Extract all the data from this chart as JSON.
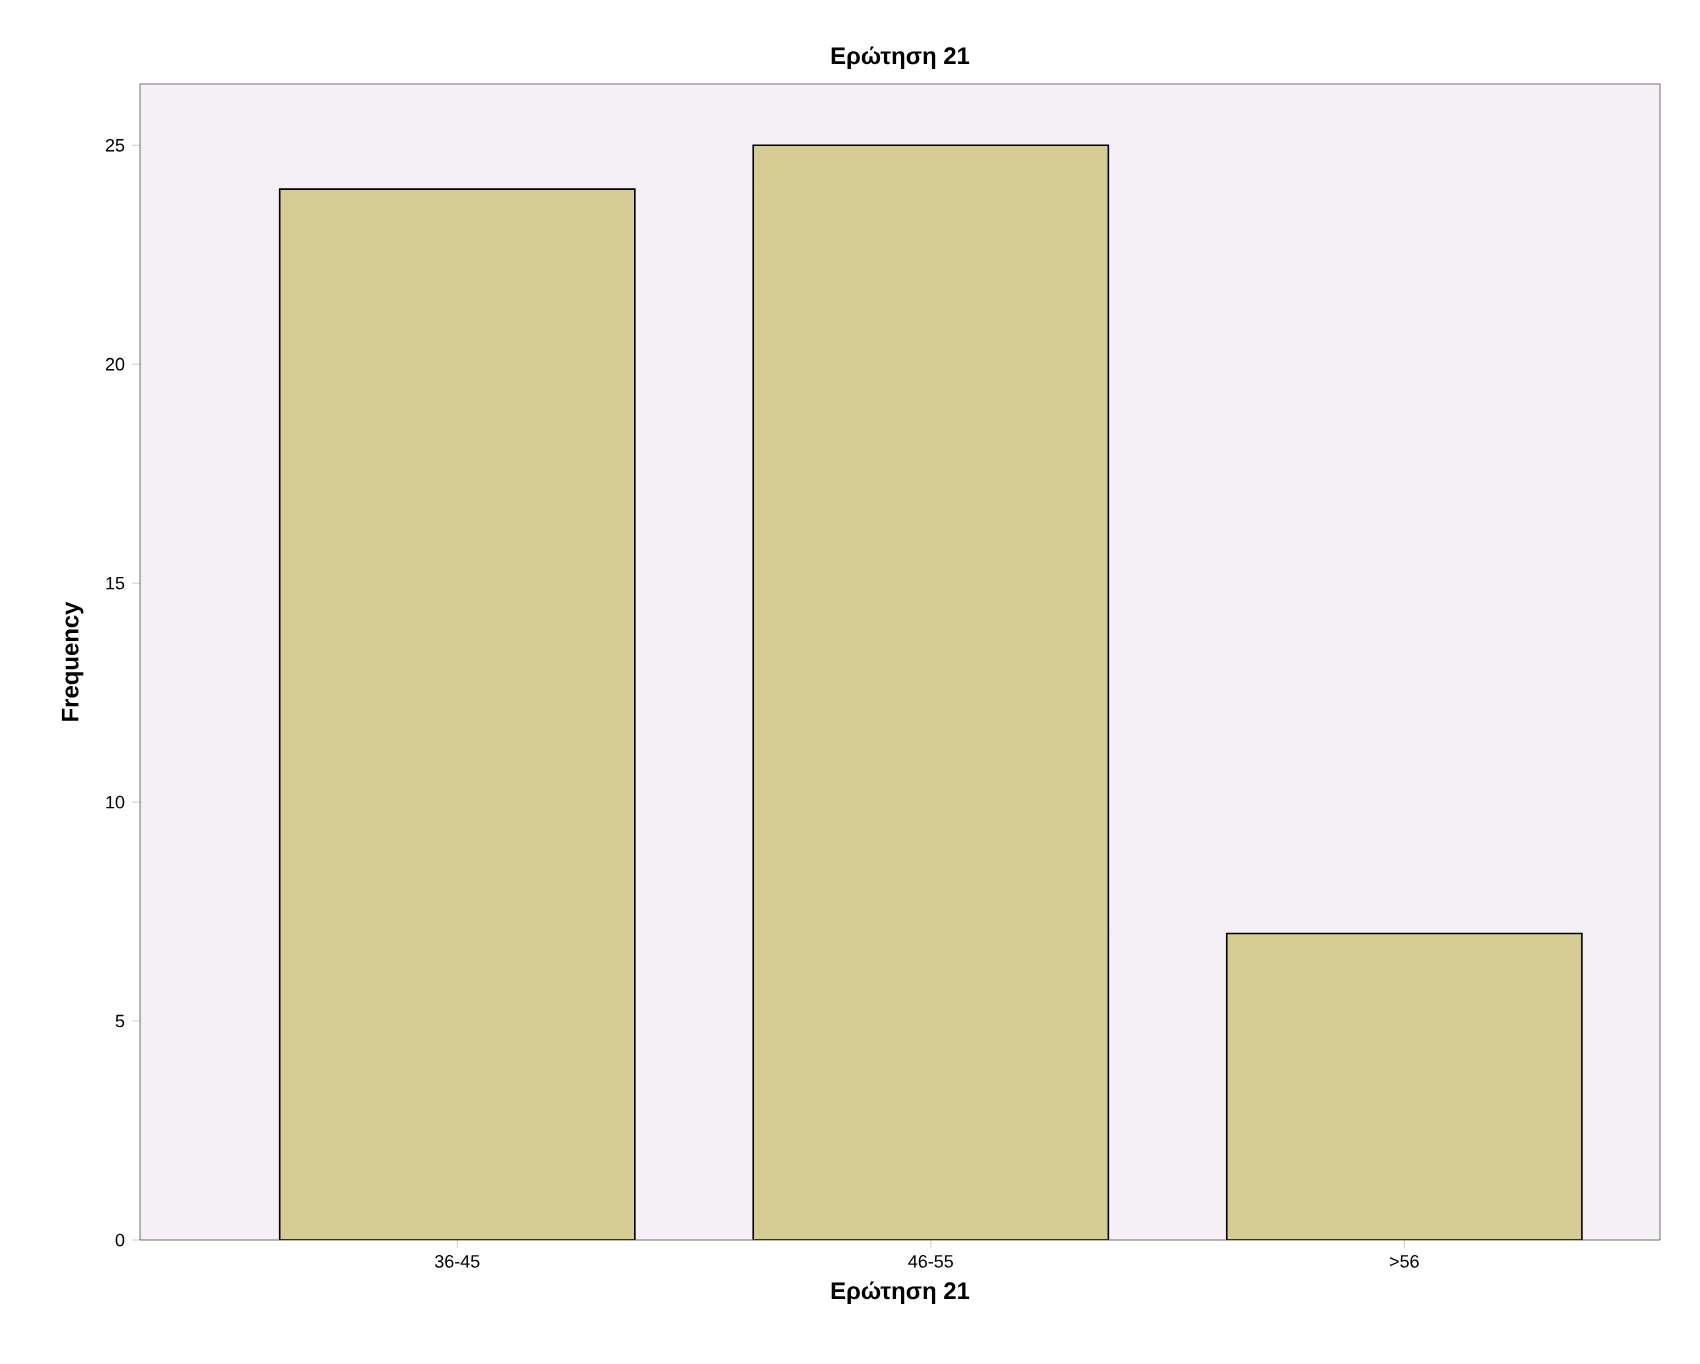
{
  "chart_data": {
    "type": "bar",
    "title": "Ερώτηση 21",
    "xlabel": "Ερώτηση 21",
    "ylabel": "Frequency",
    "categories": [
      "36-45",
      "46-55",
      ">56"
    ],
    "values": [
      24,
      25,
      7
    ],
    "color": "#d6cd95",
    "ylim": [
      0,
      26.4
    ],
    "yticks": [
      0,
      5,
      10,
      15,
      20,
      25
    ]
  }
}
